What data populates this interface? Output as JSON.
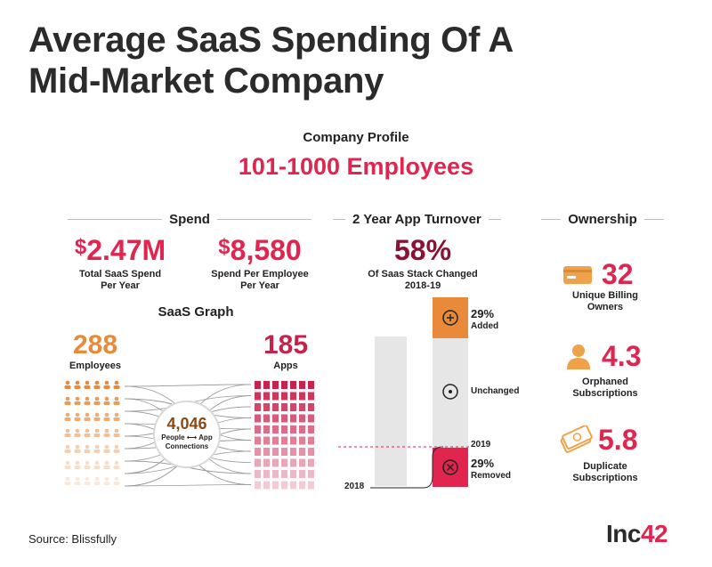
{
  "title_line1": "Average SaaS Spending Of A",
  "title_line2": "Mid-Market Company",
  "profile": {
    "label": "Company Profile",
    "value": "101-1000 Employees"
  },
  "spend": {
    "heading": "Spend",
    "total": {
      "currency": "$",
      "value": "2.47M",
      "label_line1": "Total SaaS Spend",
      "label_line2": "Per Year"
    },
    "per_employee": {
      "currency": "$",
      "value": "8,580",
      "label_line1": "Spend Per Employee",
      "label_line2": "Per Year"
    }
  },
  "saas_graph": {
    "heading": "SaaS Graph",
    "employees": {
      "value": "288",
      "label": "Employees"
    },
    "apps": {
      "value": "185",
      "label": "Apps"
    },
    "connections": {
      "value": "4,046",
      "label_left": "People",
      "label_right": "App",
      "label_line2": "Connections"
    }
  },
  "turnover": {
    "heading": "2 Year App Turnover",
    "percent": "58%",
    "label_line1": "Of Saas Stack Changed",
    "label_line2": "2018-19",
    "added": {
      "pct": "29%",
      "label": "Added"
    },
    "unchanged": {
      "label": "Unchanged"
    },
    "removed": {
      "pct": "29%",
      "label": "Removed"
    },
    "year_2018": "2018",
    "year_2019": "2019"
  },
  "ownership": {
    "heading": "Ownership",
    "billing": {
      "value": "32",
      "label_line1": "Unique Billing",
      "label_line2": "Owners",
      "icon": "credit-card-icon"
    },
    "orphaned": {
      "value": "4.3",
      "label_line1": "Orphaned",
      "label_line2": "Subscriptions",
      "icon": "person-icon"
    },
    "duplicate": {
      "value": "5.8",
      "label_line1": "Duplicate",
      "label_line2": "Subscriptions",
      "icon": "money-stack-icon"
    }
  },
  "source": "Source: Blissfully",
  "logo": {
    "part1": "Inc",
    "part2": "42"
  },
  "colors": {
    "accent": "#e0254f",
    "orange": "#e88a3a",
    "crimson": "#c8224b",
    "dark_red": "#8a1233",
    "grey_bar": "#e6e6e6"
  }
}
